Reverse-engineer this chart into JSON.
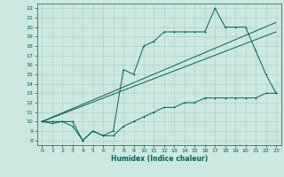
{
  "title": "",
  "xlabel": "Humidex (Indice chaleur)",
  "bg_color": "#cce8e0",
  "grid_color": "#aaccc4",
  "line_color": "#006060",
  "xlim": [
    -0.5,
    23.5
  ],
  "ylim": [
    7.5,
    22.5
  ],
  "xticks": [
    0,
    1,
    2,
    3,
    4,
    5,
    6,
    7,
    8,
    9,
    10,
    11,
    12,
    13,
    14,
    15,
    16,
    17,
    18,
    19,
    20,
    21,
    22,
    23
  ],
  "yticks": [
    8,
    9,
    10,
    11,
    12,
    13,
    14,
    15,
    16,
    17,
    18,
    19,
    20,
    21,
    22
  ],
  "main_x": [
    0,
    1,
    2,
    3,
    4,
    5,
    6,
    7,
    8,
    9,
    10,
    11,
    12,
    13,
    14,
    15,
    16,
    17,
    18,
    19,
    20,
    21,
    22,
    23
  ],
  "main_y": [
    10,
    10,
    10,
    10,
    8,
    9,
    8.5,
    9,
    15.5,
    15,
    18,
    18.5,
    19.5,
    19.5,
    19.5,
    19.5,
    19.5,
    22,
    20,
    20,
    20,
    17.5,
    15,
    13
  ],
  "line1_x": [
    0,
    23
  ],
  "line1_y": [
    10,
    19.5
  ],
  "line2_x": [
    0,
    23
  ],
  "line2_y": [
    10,
    20.5
  ],
  "bottom_x": [
    0,
    1,
    2,
    3,
    4,
    5,
    6,
    7,
    8,
    9,
    10,
    11,
    12,
    13,
    14,
    15,
    16,
    17,
    18,
    19,
    20,
    21,
    22,
    23
  ],
  "bottom_y": [
    10,
    9.8,
    10,
    9.5,
    8,
    9,
    8.5,
    8.5,
    9.5,
    10,
    10.5,
    11,
    11.5,
    11.5,
    12,
    12,
    12.5,
    12.5,
    12.5,
    12.5,
    12.5,
    12.5,
    13,
    13
  ],
  "xlabel_fontsize": 5.5,
  "tick_fontsize": 4.5,
  "lw": 0.7,
  "marker_size": 2.0
}
